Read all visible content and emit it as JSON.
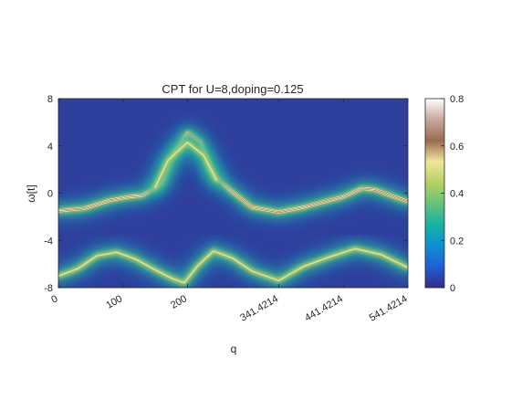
{
  "chart_data": {
    "type": "heatmap",
    "title": "CPT for U=8,doping=0.125",
    "xlabel": "q",
    "ylabel": "ω[t]",
    "xlim": [
      0,
      541.4214
    ],
    "ylim": [
      -8,
      8
    ],
    "xticks": [
      {
        "value": 0,
        "label": "0"
      },
      {
        "value": 100,
        "label": "100"
      },
      {
        "value": 200,
        "label": "200"
      },
      {
        "value": 341.4214,
        "label": "341.4214"
      },
      {
        "value": 441.4214,
        "label": "441.4214"
      },
      {
        "value": 541.4214,
        "label": "541.4214"
      }
    ],
    "yticks": [
      {
        "value": 8,
        "label": "8"
      },
      {
        "value": 4,
        "label": "4"
      },
      {
        "value": 0,
        "label": "0"
      },
      {
        "value": -4,
        "label": "-4"
      },
      {
        "value": -8,
        "label": "-8"
      }
    ],
    "colorbar": {
      "range": [
        0,
        0.8
      ],
      "ticks": [
        {
          "value": 0.8,
          "label": "0.8"
        },
        {
          "value": 0.6,
          "label": "0.6"
        },
        {
          "value": 0.4,
          "label": "0.4"
        },
        {
          "value": 0.2,
          "label": "0.2"
        },
        {
          "value": 0,
          "label": "0"
        }
      ],
      "colormap": [
        "#352a87",
        "#1f5fd6",
        "#0f8fd1",
        "#17b2a3",
        "#66c27a",
        "#b6d064",
        "#f0e69a",
        "#9a6a52",
        "#c9a79c",
        "#ffffff"
      ]
    },
    "background_color": "#2f3f9e",
    "bands": [
      {
        "name": "",
        "points": [
          [
            0,
            -1.5
          ],
          [
            40,
            -1.3
          ],
          [
            80,
            -0.6
          ],
          [
            110,
            -0.3
          ],
          [
            130,
            -0.2
          ],
          [
            160,
            0.8
          ],
          [
            180,
            3.5
          ],
          [
            200,
            5.1
          ],
          [
            220,
            4.3
          ],
          [
            240,
            1.5
          ],
          [
            265,
            0.3
          ],
          [
            300,
            -1.2
          ],
          [
            341.4214,
            -1.6
          ],
          [
            380,
            -1.2
          ],
          [
            420,
            -0.6
          ],
          [
            441.4214,
            -0.3
          ],
          [
            470,
            0.4
          ],
          [
            490,
            0.3
          ],
          [
            520,
            -0.3
          ],
          [
            541.4214,
            -0.7
          ]
        ],
        "intensity": 0.45
      },
      {
        "name": "",
        "points": [
          [
            0,
            -7.0
          ],
          [
            30,
            -6.4
          ],
          [
            60,
            -5.3
          ],
          [
            90,
            -5.0
          ],
          [
            120,
            -5.6
          ],
          [
            150,
            -6.5
          ],
          [
            175,
            -7.2
          ],
          [
            195,
            -7.6
          ],
          [
            215,
            -6.2
          ],
          [
            240,
            -4.9
          ],
          [
            270,
            -5.5
          ],
          [
            300,
            -6.6
          ],
          [
            341.4214,
            -7.4
          ],
          [
            380,
            -6.2
          ],
          [
            420,
            -5.4
          ],
          [
            460,
            -4.7
          ],
          [
            500,
            -5.2
          ],
          [
            541.4214,
            -6.3
          ]
        ],
        "intensity": 0.18
      },
      {
        "name": "",
        "points": [
          [
            150,
            0.5
          ],
          [
            170,
            2.8
          ],
          [
            200,
            4.3
          ],
          [
            225,
            3.2
          ],
          [
            245,
            1.1
          ]
        ],
        "intensity": 0.25
      }
    ]
  }
}
